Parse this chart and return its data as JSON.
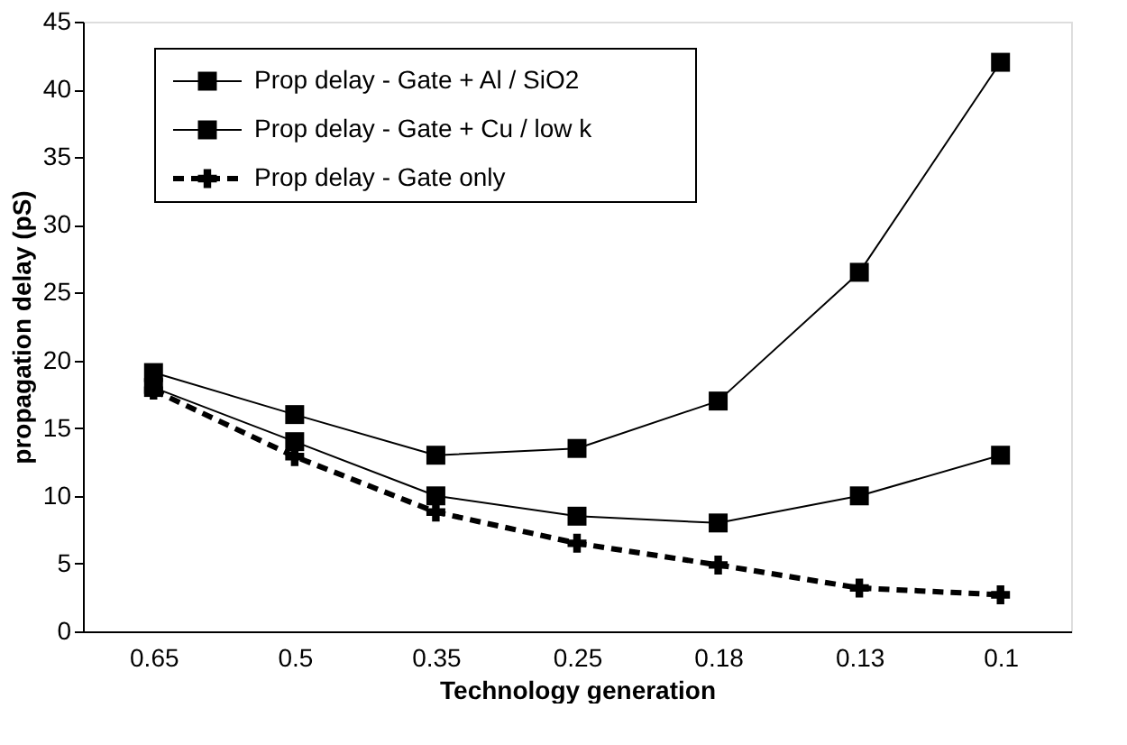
{
  "chart_data": {
    "type": "line",
    "xlabel": "Technology generation",
    "ylabel": "propagation delay (pS)",
    "categories": [
      "0.65",
      "0.5",
      "0.35",
      "0.25",
      "0.18",
      "0.13",
      "0.1"
    ],
    "ylim": [
      0,
      45
    ],
    "yticks": [
      0,
      5,
      10,
      15,
      20,
      25,
      30,
      35,
      40,
      45
    ],
    "grid": false,
    "legend": "top left",
    "series": [
      {
        "name": "Prop delay - Gate + Al / SiO2",
        "color": "#000000",
        "marker": "square",
        "line_style": "solid",
        "values": [
          19.1,
          16,
          13,
          13.5,
          17,
          26.5,
          42
        ]
      },
      {
        "name": "Prop delay - Gate + Cu / low k",
        "color": "#000000",
        "marker": "square",
        "line_style": "solid",
        "values": [
          18,
          14,
          10,
          8.5,
          8,
          10,
          13
        ]
      },
      {
        "name": "Prop delay - Gate only",
        "color": "#000000",
        "marker": "cross",
        "line_style": "dashed",
        "values": [
          17.8,
          12.9,
          8.8,
          6.5,
          4.9,
          3.2,
          2.7
        ]
      }
    ]
  }
}
